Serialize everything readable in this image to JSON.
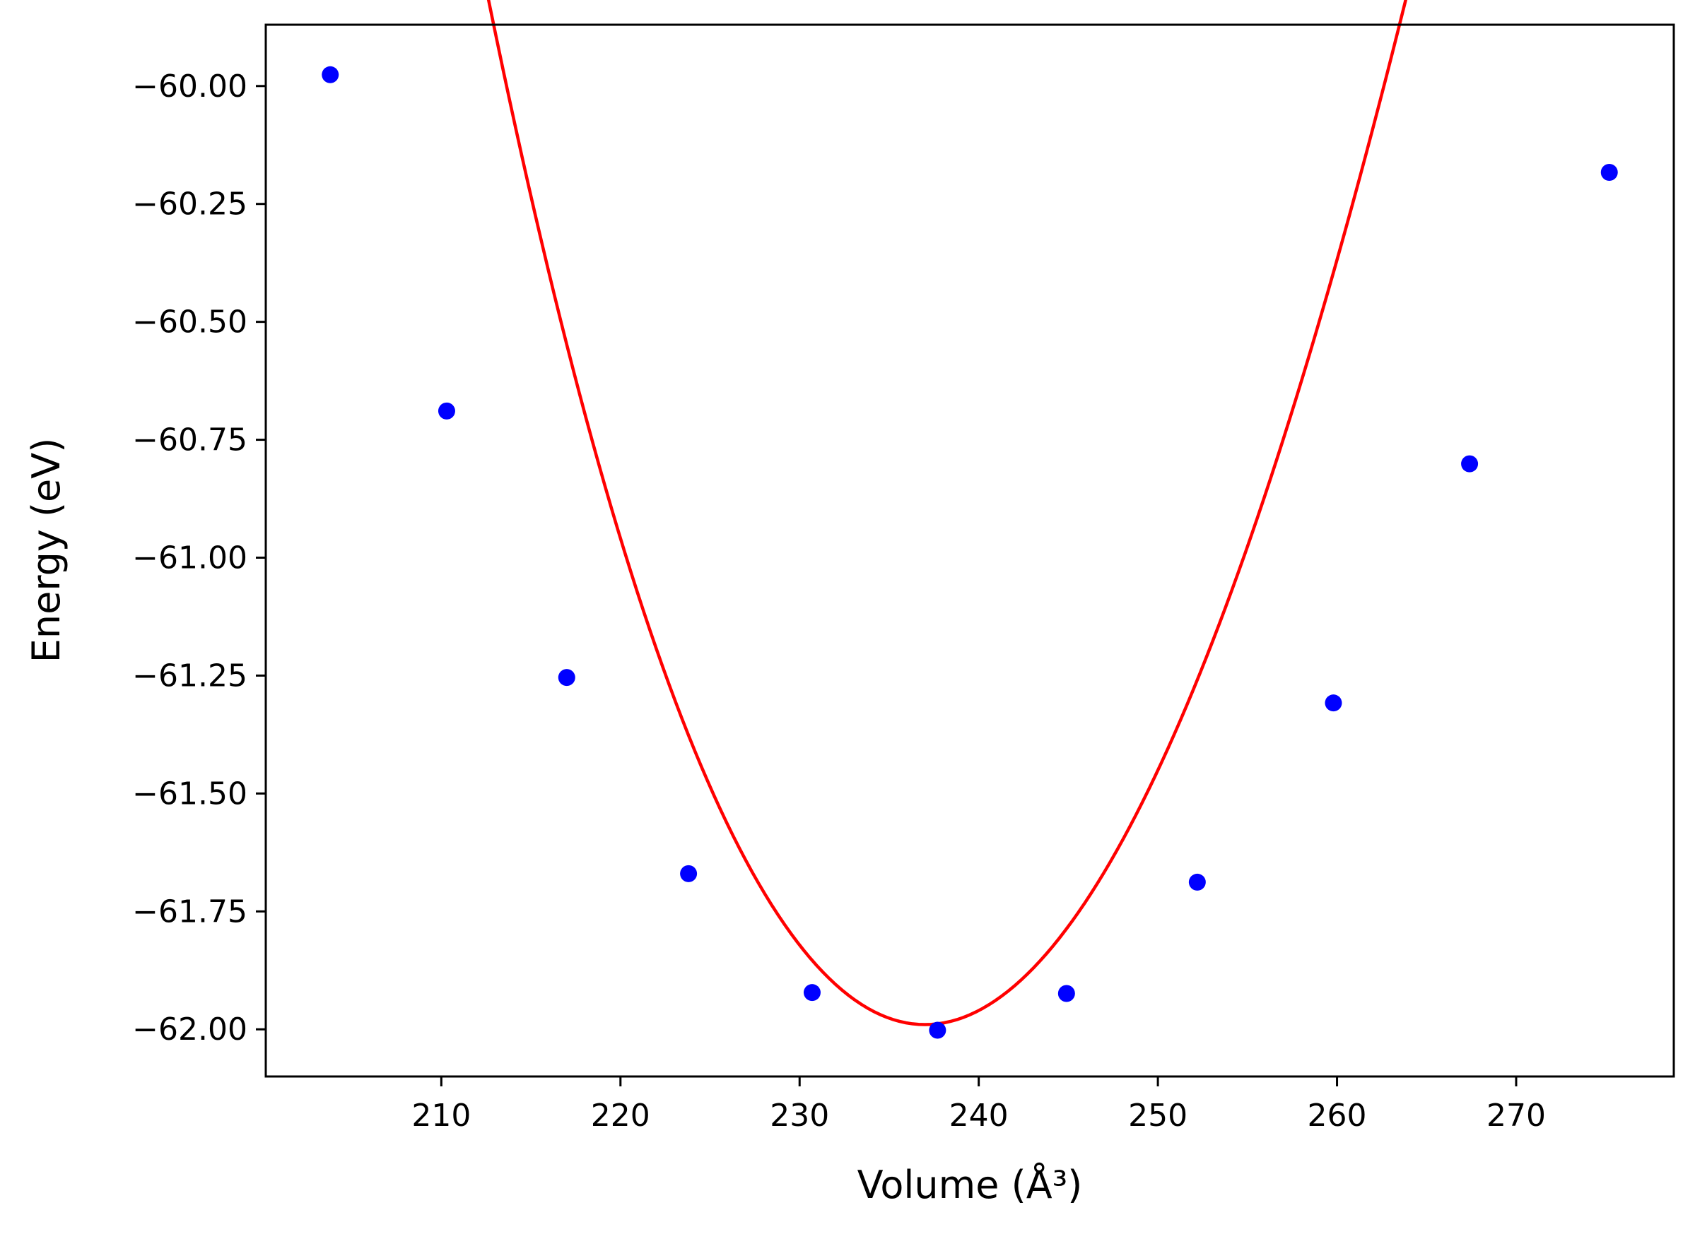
{
  "chart_data": {
    "type": "scatter",
    "xlabel": "Volume (Å³)",
    "ylabel": "Energy (eV)",
    "xlim": [
      200.2,
      278.8
    ],
    "ylim": [
      -62.1,
      -59.87
    ],
    "grid": false,
    "x_ticks": [
      210,
      220,
      230,
      240,
      250,
      260,
      270
    ],
    "x_tick_labels": [
      "210",
      "220",
      "230",
      "240",
      "250",
      "260",
      "270"
    ],
    "y_ticks": [
      -60.0,
      -60.25,
      -60.5,
      -60.75,
      -61.0,
      -61.25,
      -61.5,
      -61.75,
      -62.0
    ],
    "y_tick_labels": [
      "−60.00",
      "−60.25",
      "−60.50",
      "−60.75",
      "−61.00",
      "−61.25",
      "−61.50",
      "−61.75",
      "−62.00"
    ],
    "series": [
      {
        "type": "scatter",
        "color": "#0000ff",
        "x": [
          203.8,
          210.3,
          217.0,
          223.8,
          230.7,
          237.7,
          244.9,
          252.2,
          259.8,
          267.4,
          275.2
        ],
        "y": [
          -59.976,
          -60.689,
          -61.254,
          -61.67,
          -61.922,
          -62.002,
          -61.924,
          -61.688,
          -61.308,
          -60.801,
          -60.183
        ]
      },
      {
        "type": "line",
        "color": "#ff0000",
        "fit": {
          "v0": 237.0,
          "e0": -61.99,
          "a": 0.003354,
          "b": -1.255e-05
        },
        "x_range": [
          203.8,
          275.2
        ]
      }
    ]
  }
}
